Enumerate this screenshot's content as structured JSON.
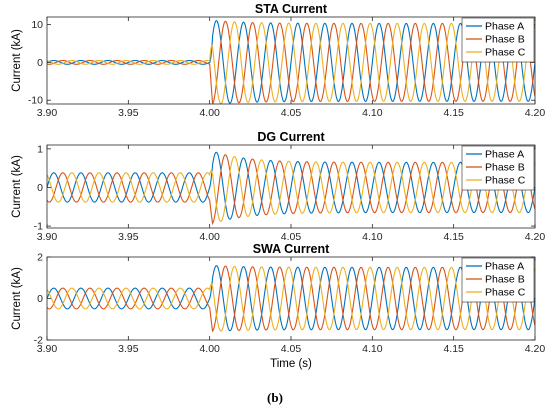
{
  "figure": {
    "caption": "(b)"
  },
  "chart_data": [
    {
      "type": "line",
      "title": "STA Current",
      "xlabel": "",
      "ylabel": "Current (kA)",
      "xlim": [
        3.9,
        4.2
      ],
      "ylim": [
        -11,
        12
      ],
      "xticks": [
        3.9,
        3.95,
        4.0,
        4.05,
        4.1,
        4.15,
        4.2
      ],
      "xtick_labels": [
        "3.90",
        "3.95",
        "4.00",
        "4.05",
        "4.10",
        "4.15",
        "4.20"
      ],
      "yticks": [
        -10,
        0,
        10
      ],
      "ytick_labels": [
        "-10",
        "0",
        "10"
      ],
      "fault_time": 4.0,
      "frequency_hz": 60,
      "pre_fault_amplitude_kA": 0.5,
      "post_fault_amplitude_kA": 10.3,
      "first_post_fault_peak_kA": 11.2,
      "legend": {
        "position": "top-right",
        "entries": [
          "Phase A",
          "Phase B",
          "Phase C"
        ]
      },
      "series": [
        {
          "name": "Phase A",
          "color": "#0072BD",
          "phase_deg": 0
        },
        {
          "name": "Phase B",
          "color": "#D95319",
          "phase_deg": -120
        },
        {
          "name": "Phase C",
          "color": "#EDB120",
          "phase_deg": 120
        }
      ]
    },
    {
      "type": "line",
      "title": "DG Current",
      "xlabel": "",
      "ylabel": "Current (kA)",
      "xlim": [
        3.9,
        4.2
      ],
      "ylim": [
        -1.05,
        1.1
      ],
      "xticks": [
        3.9,
        3.95,
        4.0,
        4.05,
        4.1,
        4.15,
        4.2
      ],
      "xtick_labels": [
        "3.90",
        "3.95",
        "4.00",
        "4.05",
        "4.10",
        "4.15",
        "4.20"
      ],
      "yticks": [
        -1,
        0,
        1
      ],
      "ytick_labels": [
        "-1",
        "0",
        "1"
      ],
      "fault_time": 4.0,
      "frequency_hz": 60,
      "pre_fault_amplitude_kA": 0.38,
      "post_fault_amplitude_kA": 0.65,
      "first_post_fault_peak_kA": 0.97,
      "legend": {
        "position": "top-right",
        "entries": [
          "Phase A",
          "Phase B",
          "Phase C"
        ]
      },
      "series": [
        {
          "name": "Phase A",
          "color": "#0072BD",
          "phase_deg": 0
        },
        {
          "name": "Phase B",
          "color": "#D95319",
          "phase_deg": -120
        },
        {
          "name": "Phase C",
          "color": "#EDB120",
          "phase_deg": 120
        }
      ]
    },
    {
      "type": "line",
      "title": "SWA Current",
      "xlabel": "Time (s)",
      "ylabel": "Current (kA)",
      "xlim": [
        3.9,
        4.2
      ],
      "ylim": [
        -2,
        2
      ],
      "xticks": [
        3.9,
        3.95,
        4.0,
        4.05,
        4.1,
        4.15,
        4.2
      ],
      "xtick_labels": [
        "3.90",
        "3.95",
        "4.00",
        "4.05",
        "4.10",
        "4.15",
        "4.20"
      ],
      "yticks": [
        -2,
        0,
        2
      ],
      "ytick_labels": [
        "-2",
        "0",
        "2"
      ],
      "fault_time": 4.0,
      "frequency_hz": 60,
      "pre_fault_amplitude_kA": 0.5,
      "post_fault_amplitude_kA": 1.5,
      "first_post_fault_peak_kA": 1.6,
      "legend": {
        "position": "top-right",
        "entries": [
          "Phase A",
          "Phase B",
          "Phase C"
        ]
      },
      "series": [
        {
          "name": "Phase A",
          "color": "#0072BD",
          "phase_deg": 0
        },
        {
          "name": "Phase B",
          "color": "#D95319",
          "phase_deg": -120
        },
        {
          "name": "Phase C",
          "color": "#EDB120",
          "phase_deg": 120
        }
      ]
    }
  ]
}
